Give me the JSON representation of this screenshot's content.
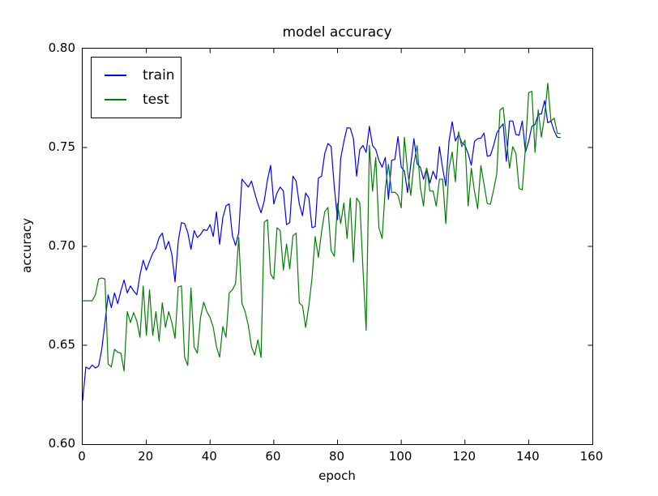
{
  "colors": {
    "train_line": "#0000ff",
    "test_line": "#008000",
    "axis": "#000000",
    "background": "#ffffff"
  },
  "legend": {
    "items": [
      {
        "label": "train",
        "color": "#0000ff"
      },
      {
        "label": "test",
        "color": "#008000"
      }
    ]
  },
  "chart_data": {
    "type": "line",
    "title": "model accuracy",
    "xlabel": "epoch",
    "ylabel": "accuracy",
    "xlim": [
      0,
      160
    ],
    "ylim": [
      0.6,
      0.8
    ],
    "x_ticks": [
      0,
      20,
      40,
      60,
      80,
      100,
      120,
      140,
      160
    ],
    "x_tick_labels": [
      "0",
      "20",
      "40",
      "60",
      "80",
      "100",
      "120",
      "140",
      "160"
    ],
    "y_ticks": [
      0.6,
      0.65,
      0.7,
      0.75,
      0.8
    ],
    "y_tick_labels": [
      "0.60",
      "0.65",
      "0.70",
      "0.75",
      "0.80"
    ],
    "grid": false,
    "legend_position": "upper left",
    "tick_direction": "in",
    "x_start": 0,
    "x_step": 1,
    "series": [
      {
        "name": "train",
        "color": "#0000ff",
        "values": [
          0.622,
          0.639,
          0.638,
          0.64,
          0.6385,
          0.6395,
          0.648,
          0.6615,
          0.6755,
          0.669,
          0.6765,
          0.671,
          0.6775,
          0.683,
          0.6765,
          0.68,
          0.6775,
          0.6755,
          0.6855,
          0.693,
          0.688,
          0.6925,
          0.6965,
          0.699,
          0.7045,
          0.7067,
          0.6985,
          0.7025,
          0.696,
          0.682,
          0.7025,
          0.712,
          0.7115,
          0.707,
          0.6985,
          0.708,
          0.7045,
          0.706,
          0.7085,
          0.708,
          0.711,
          0.705,
          0.7175,
          0.701,
          0.7145,
          0.7205,
          0.7215,
          0.7055,
          0.7005,
          0.707,
          0.734,
          0.732,
          0.73,
          0.733,
          0.727,
          0.7215,
          0.717,
          0.723,
          0.7335,
          0.741,
          0.7215,
          0.727,
          0.73,
          0.728,
          0.711,
          0.712,
          0.7355,
          0.733,
          0.7215,
          0.7155,
          0.727,
          0.7245,
          0.7095,
          0.71,
          0.7345,
          0.7355,
          0.747,
          0.752,
          0.7505,
          0.73,
          0.7135,
          0.7445,
          0.753,
          0.76,
          0.7598,
          0.7545,
          0.7355,
          0.749,
          0.751,
          0.7475,
          0.7607,
          0.751,
          0.749,
          0.7435,
          0.74,
          0.745,
          0.7238,
          0.7435,
          0.744,
          0.7555,
          0.74,
          0.738,
          0.7272,
          0.7415,
          0.7545,
          0.7417,
          0.74,
          0.734,
          0.7395,
          0.732,
          0.738,
          0.734,
          0.7504,
          0.7395,
          0.7306,
          0.7531,
          0.763,
          0.7533,
          0.7566,
          0.7525,
          0.7511,
          0.747,
          0.741,
          0.7531,
          0.7545,
          0.7547,
          0.7573,
          0.7456,
          0.746,
          0.751,
          0.7573,
          0.76,
          0.762,
          0.743,
          0.7634,
          0.7634,
          0.7566,
          0.7562,
          0.7634,
          0.7477,
          0.753,
          0.7607,
          0.7616,
          0.7668,
          0.767,
          0.7737,
          0.7625,
          0.7634,
          0.7584,
          0.7552,
          0.755
        ]
      },
      {
        "name": "test",
        "color": "#008000",
        "values": [
          0.6725,
          0.6725,
          0.6725,
          0.6725,
          0.6755,
          0.6835,
          0.684,
          0.6835,
          0.6405,
          0.639,
          0.648,
          0.6465,
          0.646,
          0.637,
          0.667,
          0.6615,
          0.6665,
          0.6623,
          0.654,
          0.68,
          0.655,
          0.678,
          0.655,
          0.667,
          0.652,
          0.6715,
          0.659,
          0.667,
          0.6616,
          0.6535,
          0.6795,
          0.68,
          0.644,
          0.6398,
          0.679,
          0.649,
          0.646,
          0.664,
          0.6718,
          0.667,
          0.664,
          0.659,
          0.6493,
          0.644,
          0.6595,
          0.654,
          0.6765,
          0.678,
          0.6812,
          0.7045,
          0.6713,
          0.667,
          0.66,
          0.6493,
          0.645,
          0.6528,
          0.6438,
          0.7123,
          0.7135,
          0.686,
          0.6834,
          0.7094,
          0.708,
          0.688,
          0.7012,
          0.6886,
          0.7053,
          0.7067,
          0.6713,
          0.67,
          0.659,
          0.67,
          0.684,
          0.705,
          0.6944,
          0.7074,
          0.7176,
          0.7197,
          0.6978,
          0.695,
          0.7217,
          0.7115,
          0.722,
          0.704,
          0.7245,
          0.692,
          0.7245,
          0.722,
          0.6883,
          0.6575,
          0.7511,
          0.7279,
          0.745,
          0.7094,
          0.704,
          0.7292,
          0.7415,
          0.7272,
          0.7274,
          0.7258,
          0.7195,
          0.7552,
          0.738,
          0.7258,
          0.7422,
          0.751,
          0.7299,
          0.7204,
          0.7395,
          0.7279,
          0.728,
          0.7204,
          0.734,
          0.734,
          0.7115,
          0.7395,
          0.7477,
          0.7327,
          0.758,
          0.7504,
          0.7538,
          0.7204,
          0.7395,
          0.7279,
          0.719,
          0.7409,
          0.7313,
          0.7217,
          0.7213,
          0.7286,
          0.7368,
          0.7689,
          0.7702,
          0.7545,
          0.7395,
          0.7504,
          0.747,
          0.7292,
          0.7286,
          0.75,
          0.7777,
          0.7784,
          0.7475,
          0.769,
          0.7552,
          0.766,
          0.7825,
          0.7634,
          0.7648,
          0.7572,
          0.757
        ]
      }
    ]
  }
}
